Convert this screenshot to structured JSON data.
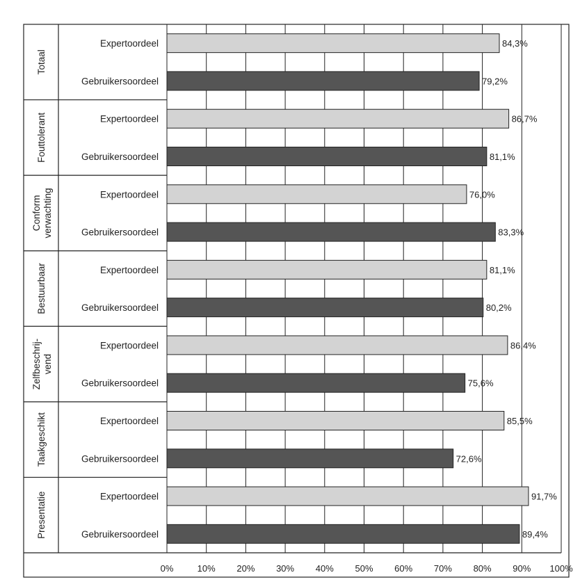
{
  "chart_data": {
    "type": "bar",
    "orientation": "horizontal",
    "title": "",
    "xlabel": "",
    "ylabel": "",
    "xlim": [
      0,
      100
    ],
    "x_ticks": [
      "0%",
      "10%",
      "20%",
      "30%",
      "40%",
      "50%",
      "60%",
      "70%",
      "80%",
      "90%",
      "100%"
    ],
    "grid": true,
    "legend": "none",
    "series_colors": {
      "Expertoordeel": "#d3d3d3",
      "Gebruikersoordeel": "#555555"
    },
    "groups": [
      {
        "label": "Totaal",
        "bars": [
          {
            "series": "Expertoordeel",
            "value": 84.3,
            "label": "84,3%"
          },
          {
            "series": "Gebruikersoordeel",
            "value": 79.2,
            "label": "79,2%"
          }
        ]
      },
      {
        "label": "Fouttolerant",
        "bars": [
          {
            "series": "Expertoordeel",
            "value": 86.7,
            "label": "86,7%"
          },
          {
            "series": "Gebruikersoordeel",
            "value": 81.1,
            "label": "81,1%"
          }
        ]
      },
      {
        "label": "Conform verwachting",
        "label_lines": [
          "Conform",
          "verwachting"
        ],
        "bars": [
          {
            "series": "Expertoordeel",
            "value": 76.0,
            "label": "76,0%"
          },
          {
            "series": "Gebruikersoordeel",
            "value": 83.3,
            "label": "83,3%"
          }
        ]
      },
      {
        "label": "Bestuurbaar",
        "bars": [
          {
            "series": "Expertoordeel",
            "value": 81.1,
            "label": "81,1%"
          },
          {
            "series": "Gebruikersoordeel",
            "value": 80.2,
            "label": "80,2%"
          }
        ]
      },
      {
        "label": "Zelfbeschrij-vend",
        "label_lines": [
          "Zelfbeschrij-",
          "vend"
        ],
        "bars": [
          {
            "series": "Expertoordeel",
            "value": 86.4,
            "label": "86,4%"
          },
          {
            "series": "Gebruikersoordeel",
            "value": 75.6,
            "label": "75,6%"
          }
        ]
      },
      {
        "label": "Taakgeschikt",
        "bars": [
          {
            "series": "Expertoordeel",
            "value": 85.5,
            "label": "85,5%"
          },
          {
            "series": "Gebruikersoordeel",
            "value": 72.6,
            "label": "72,6%"
          }
        ]
      },
      {
        "label": "Presentatie",
        "bars": [
          {
            "series": "Expertoordeel",
            "value": 91.7,
            "label": "91,7%"
          },
          {
            "series": "Gebruikersoordeel",
            "value": 89.4,
            "label": "89,4%"
          }
        ]
      }
    ]
  }
}
